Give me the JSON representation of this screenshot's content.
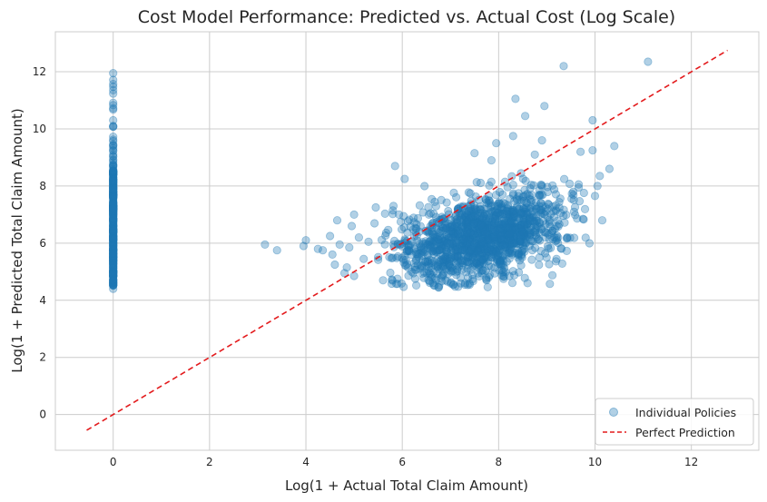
{
  "chart_data": {
    "type": "scatter",
    "title": "Cost Model Performance: Predicted vs. Actual Cost (Log Scale)",
    "xlabel": "Log(1 + Actual Total Claim Amount)",
    "ylabel": "Log(1 + Predicted Total Claim Amount)",
    "xlim": [
      -1.2,
      13.4
    ],
    "ylim": [
      -1.25,
      13.4
    ],
    "xticks": [
      0,
      2,
      4,
      6,
      8,
      10,
      12
    ],
    "yticks": [
      0,
      2,
      4,
      6,
      8,
      10,
      12
    ],
    "grid": true,
    "legend_position": "bottom-right",
    "series": [
      {
        "name": "Individual Policies",
        "kind": "scatter",
        "color": "#1f77b4",
        "alpha": 0.35,
        "zero_cluster": {
          "x": 0,
          "y_min": 4.4,
          "y_max": 11.95,
          "dense_y_min": 4.5,
          "dense_y_max": 8.5,
          "count": 420
        },
        "main_cluster": {
          "x_center": 7.6,
          "x_sd": 0.85,
          "y_center": 6.2,
          "y_sd": 0.7,
          "slope": 0.35,
          "count": 1500
        },
        "outliers": [
          [
            3.15,
            5.95
          ],
          [
            3.4,
            5.75
          ],
          [
            3.95,
            5.9
          ],
          [
            4.0,
            6.1
          ],
          [
            4.25,
            5.8
          ],
          [
            4.35,
            5.75
          ],
          [
            4.5,
            6.25
          ],
          [
            4.55,
            5.6
          ],
          [
            4.6,
            5.25
          ],
          [
            4.65,
            6.8
          ],
          [
            4.7,
            5.95
          ],
          [
            4.8,
            4.95
          ],
          [
            4.85,
            5.15
          ],
          [
            4.9,
            5.85
          ],
          [
            4.95,
            6.6
          ],
          [
            5.0,
            7.0
          ],
          [
            5.1,
            6.2
          ],
          [
            5.2,
            5.45
          ],
          [
            5.3,
            6.05
          ],
          [
            5.45,
            7.25
          ],
          [
            5.85,
            8.7
          ],
          [
            6.05,
            8.25
          ],
          [
            5.6,
            4.7
          ],
          [
            5.0,
            4.85
          ],
          [
            8.35,
            11.05
          ],
          [
            9.35,
            12.2
          ],
          [
            11.1,
            12.35
          ],
          [
            8.95,
            10.8
          ],
          [
            8.55,
            10.45
          ],
          [
            9.95,
            10.3
          ],
          [
            8.3,
            9.75
          ],
          [
            7.95,
            9.5
          ],
          [
            10.4,
            9.4
          ],
          [
            10.1,
            8.35
          ],
          [
            9.7,
            9.2
          ],
          [
            8.9,
            9.6
          ],
          [
            8.75,
            9.1
          ],
          [
            9.55,
            7.8
          ],
          [
            10.0,
            7.65
          ],
          [
            10.15,
            6.8
          ],
          [
            7.5,
            9.15
          ],
          [
            7.85,
            8.9
          ],
          [
            10.3,
            8.6
          ],
          [
            10.05,
            8.0
          ],
          [
            9.75,
            6.85
          ],
          [
            9.2,
            5.45
          ],
          [
            8.6,
            4.6
          ],
          [
            8.1,
            4.75
          ],
          [
            7.3,
            4.55
          ],
          [
            6.75,
            4.45
          ],
          [
            9.95,
            9.25
          ]
        ]
      },
      {
        "name": "Perfect Prediction",
        "kind": "line",
        "style": "dashed",
        "color": "#e31a1c",
        "points": [
          [
            -0.55,
            -0.55
          ],
          [
            12.75,
            12.75
          ]
        ]
      }
    ]
  }
}
